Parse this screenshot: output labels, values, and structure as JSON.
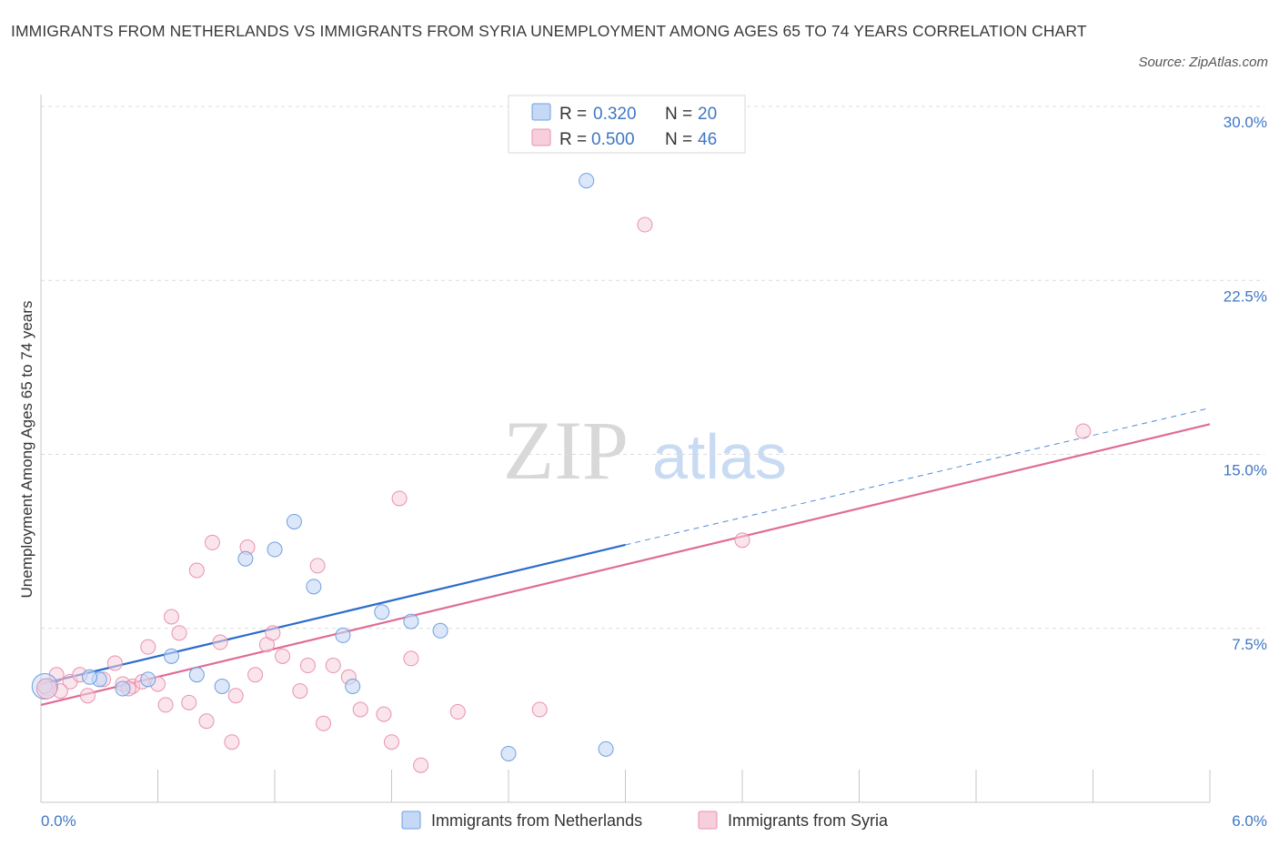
{
  "title": "IMMIGRANTS FROM NETHERLANDS VS IMMIGRANTS FROM SYRIA UNEMPLOYMENT AMONG AGES 65 TO 74 YEARS CORRELATION CHART",
  "source": "Source: ZipAtlas.com",
  "watermark": {
    "zip": "ZIP",
    "atlas": "atlas"
  },
  "colors": {
    "netherlands": "#6f9fe0",
    "netherlands_fill": "#c5d8f5",
    "netherlands_line": "#2b6ccc",
    "syria": "#e892ae",
    "syria_fill": "#f7cfdc",
    "syria_line": "#e06b97",
    "axis_text": "#3f77c4"
  },
  "legend": {
    "rows": [
      {
        "r_label": "R =",
        "r_value": "0.320",
        "n_label": "N =",
        "n_value": "20"
      },
      {
        "r_label": "R =",
        "r_value": "0.500",
        "n_label": "N =",
        "n_value": "46"
      }
    ]
  },
  "bottom_legend": [
    "Immigrants from Netherlands",
    "Immigrants from Syria"
  ],
  "chart_data": {
    "type": "scatter",
    "title": "IMMIGRANTS FROM NETHERLANDS VS IMMIGRANTS FROM SYRIA UNEMPLOYMENT AMONG AGES 65 TO 74 YEARS CORRELATION CHART",
    "xlabel": "",
    "ylabel": "Unemployment Among Ages 65 to 74 years",
    "xlim": [
      0,
      6.0
    ],
    "ylim": [
      0,
      30.0
    ],
    "x_tick_labels": [
      "0.0%",
      "6.0%"
    ],
    "y_tick_labels": [
      "7.5%",
      "15.0%",
      "22.5%",
      "30.0%"
    ],
    "y_ticks": [
      7.5,
      15.0,
      22.5,
      30.0
    ],
    "grid": "horizontal dashed",
    "legend_position": "top-center",
    "series": [
      {
        "name": "Immigrants from Netherlands",
        "r": 0.32,
        "n": 20,
        "points": [
          [
            0.02,
            5.0
          ],
          [
            0.3,
            5.3
          ],
          [
            0.42,
            4.9
          ],
          [
            0.55,
            5.3
          ],
          [
            0.67,
            6.3
          ],
          [
            0.8,
            5.5
          ],
          [
            0.93,
            5.0
          ],
          [
            1.05,
            10.5
          ],
          [
            1.2,
            10.9
          ],
          [
            1.3,
            12.1
          ],
          [
            1.4,
            9.3
          ],
          [
            1.55,
            7.2
          ],
          [
            1.6,
            5.0
          ],
          [
            1.75,
            8.2
          ],
          [
            1.9,
            7.8
          ],
          [
            2.05,
            7.4
          ],
          [
            2.4,
            2.1
          ],
          [
            2.8,
            26.8
          ],
          [
            2.9,
            2.3
          ],
          [
            0.25,
            5.4
          ]
        ],
        "trend": {
          "x": [
            0.0,
            3.0
          ],
          "y": [
            5.1,
            11.1
          ],
          "dashed_extension": {
            "x": [
              3.0,
              6.0
            ],
            "y": [
              11.1,
              17.0
            ]
          }
        }
      },
      {
        "name": "Immigrants from Syria",
        "r": 0.5,
        "n": 46,
        "points": [
          [
            0.03,
            4.9
          ],
          [
            0.08,
            5.5
          ],
          [
            0.15,
            5.2
          ],
          [
            0.2,
            5.5
          ],
          [
            0.24,
            4.6
          ],
          [
            0.32,
            5.3
          ],
          [
            0.38,
            6.0
          ],
          [
            0.42,
            5.1
          ],
          [
            0.47,
            5.0
          ],
          [
            0.52,
            5.2
          ],
          [
            0.55,
            6.7
          ],
          [
            0.6,
            5.1
          ],
          [
            0.64,
            4.2
          ],
          [
            0.67,
            8.0
          ],
          [
            0.71,
            7.3
          ],
          [
            0.76,
            4.3
          ],
          [
            0.8,
            10.0
          ],
          [
            0.85,
            3.5
          ],
          [
            0.88,
            11.2
          ],
          [
            0.92,
            6.9
          ],
          [
            0.98,
            2.6
          ],
          [
            1.0,
            4.6
          ],
          [
            1.06,
            11.0
          ],
          [
            1.1,
            5.5
          ],
          [
            1.16,
            6.8
          ],
          [
            1.19,
            7.3
          ],
          [
            1.24,
            6.3
          ],
          [
            1.33,
            4.8
          ],
          [
            1.37,
            5.9
          ],
          [
            1.42,
            10.2
          ],
          [
            1.45,
            3.4
          ],
          [
            1.5,
            5.9
          ],
          [
            1.58,
            5.4
          ],
          [
            1.64,
            4.0
          ],
          [
            1.76,
            3.8
          ],
          [
            1.8,
            2.6
          ],
          [
            1.84,
            13.1
          ],
          [
            1.9,
            6.2
          ],
          [
            1.95,
            1.6
          ],
          [
            2.14,
            3.9
          ],
          [
            2.56,
            4.0
          ],
          [
            3.1,
            24.9
          ],
          [
            3.6,
            11.3
          ],
          [
            5.35,
            16.0
          ],
          [
            0.1,
            4.8
          ],
          [
            0.45,
            4.9
          ]
        ],
        "trend": {
          "x": [
            0.0,
            6.0
          ],
          "y": [
            4.2,
            16.3
          ]
        }
      }
    ]
  }
}
